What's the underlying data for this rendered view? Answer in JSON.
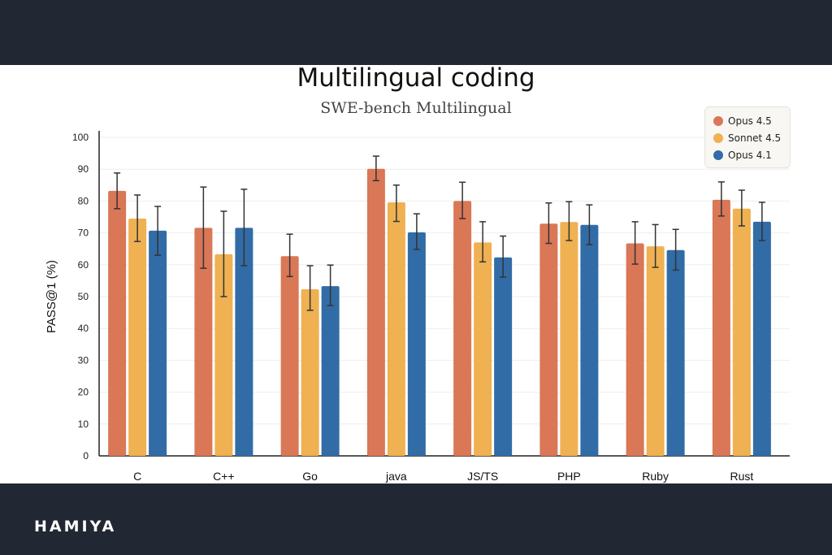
{
  "brand": "HAMIYA",
  "chart_data": {
    "type": "bar",
    "title": "Multilingual coding",
    "subtitle": "SWE-bench Multilingual",
    "xlabel": "",
    "ylabel": "PASS@1 (%)",
    "ylim": [
      0,
      100
    ],
    "yticks": [
      0,
      10,
      20,
      30,
      40,
      50,
      60,
      70,
      80,
      90,
      100
    ],
    "grid": true,
    "legend_position": "top-right",
    "categories": [
      "C",
      "C++",
      "Go",
      "java",
      "JS/TS",
      "PHP",
      "Ruby",
      "Rust"
    ],
    "series": [
      {
        "name": "Opus 4.5",
        "color": "#d97757",
        "values": [
          83.2,
          71.6,
          62.7,
          90.1,
          80.0,
          72.9,
          66.7,
          80.4
        ],
        "err_high": [
          88.8,
          84.4,
          69.6,
          94.1,
          85.9,
          79.4,
          73.5,
          86.0
        ],
        "err_low": [
          77.6,
          58.9,
          56.3,
          86.4,
          74.5,
          66.7,
          60.2,
          75.3
        ]
      },
      {
        "name": "Sonnet 4.5",
        "color": "#efb152",
        "values": [
          74.5,
          63.3,
          52.3,
          79.6,
          67.0,
          73.4,
          65.8,
          77.6
        ],
        "err_high": [
          81.9,
          76.8,
          59.7,
          85.0,
          73.5,
          79.8,
          72.6,
          83.4
        ],
        "err_low": [
          67.3,
          50.0,
          45.7,
          73.6,
          60.9,
          67.6,
          59.2,
          72.2
        ]
      },
      {
        "name": "Opus 4.1",
        "color": "#326ca6",
        "values": [
          70.7,
          71.6,
          53.3,
          70.2,
          62.3,
          72.5,
          64.6,
          73.5
        ],
        "err_high": [
          78.3,
          83.7,
          59.9,
          76.0,
          69.0,
          78.8,
          71.1,
          79.6
        ],
        "err_low": [
          63.0,
          59.7,
          47.2,
          64.8,
          56.1,
          66.3,
          58.3,
          67.6
        ]
      }
    ]
  }
}
